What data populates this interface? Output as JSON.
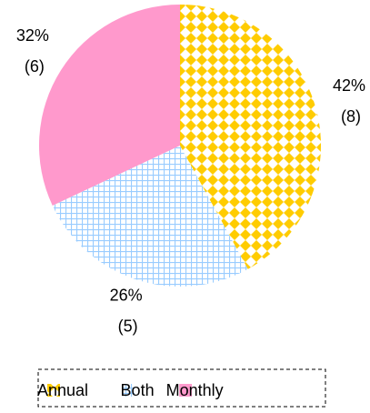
{
  "chart_data": {
    "type": "pie",
    "categories": [
      "Annual",
      "Both",
      "Monthly"
    ],
    "values": [
      42,
      26,
      32
    ],
    "value_labels": [
      "42%",
      "26%",
      "32%"
    ],
    "counts": [
      8,
      5,
      6
    ],
    "count_labels": [
      "(8)",
      "(5)",
      "(6)"
    ],
    "colors": [
      "#ffcc00",
      "#99ccff",
      "#ff99cc"
    ],
    "patterns": [
      "diamonds",
      "grid",
      "solid"
    ],
    "legend": "bottom"
  }
}
